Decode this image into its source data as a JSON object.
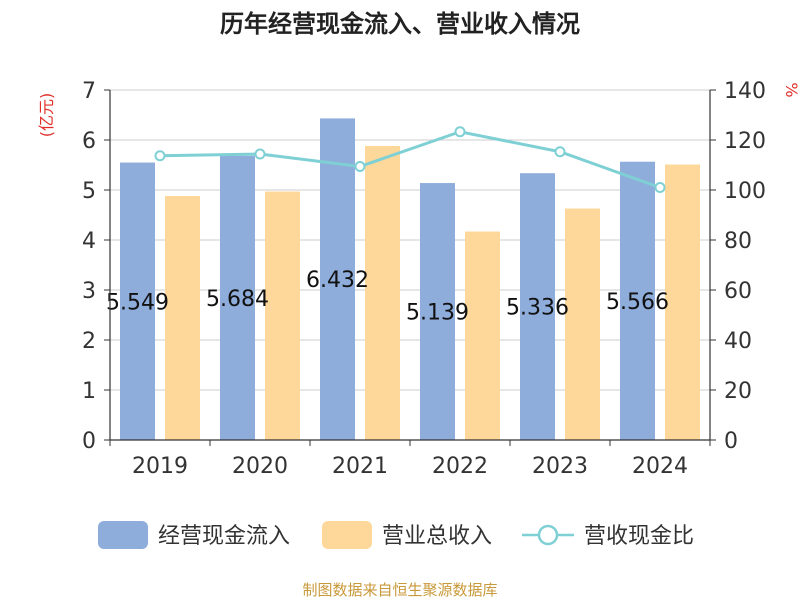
{
  "chart_data": {
    "type": "bar",
    "title": "历年经营现金流入、营业收入情况",
    "categories": [
      "2019",
      "2020",
      "2021",
      "2022",
      "2023",
      "2024"
    ],
    "series": [
      {
        "name": "经营现金流入",
        "type": "bar",
        "axis": "left",
        "color": "#8eaddb",
        "values": [
          5.549,
          5.684,
          6.432,
          5.139,
          5.336,
          5.566
        ],
        "labels": [
          "5.549",
          "5.684",
          "6.432",
          "5.139",
          "5.336",
          "5.566"
        ]
      },
      {
        "name": "营业总收入",
        "type": "bar",
        "axis": "left",
        "color": "#fdd89a",
        "values": [
          4.88,
          4.97,
          5.88,
          4.17,
          4.63,
          5.51
        ]
      },
      {
        "name": "营收现金比",
        "type": "line",
        "axis": "right",
        "color": "#7fd0d4",
        "values": [
          113.7,
          114.4,
          109.4,
          123.3,
          115.3,
          101.0
        ]
      }
    ],
    "y_left": {
      "label": "(亿元)",
      "min": 0,
      "max": 7,
      "ticks": [
        0,
        1,
        2,
        3,
        4,
        5,
        6,
        7
      ]
    },
    "y_right": {
      "label": "%",
      "min": 0,
      "max": 140,
      "ticks": [
        0,
        20,
        40,
        60,
        80,
        100,
        120,
        140
      ]
    },
    "grid": true,
    "legend": "bottom"
  },
  "source": "制图数据来自恒生聚源数据库"
}
